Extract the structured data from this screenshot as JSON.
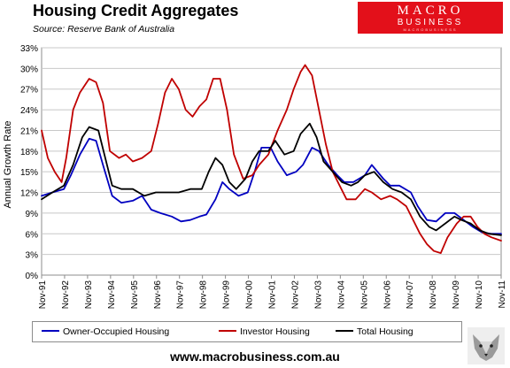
{
  "title": "Housing Credit Aggregates",
  "source": "Source: Reserve Bank of Australia",
  "logo": {
    "line1": "MACRO",
    "line2": "BUSINESS",
    "line3": "MACROBUSINESS"
  },
  "footer_url": "www.macrobusiness.com.au",
  "colors": {
    "owner": "#0000c0",
    "investor": "#c00000",
    "total": "#000000",
    "logo_bg": "#e3101a"
  },
  "chart_data": {
    "type": "line",
    "title": "Housing Credit Aggregates",
    "ylabel": "Annual Growth Rate",
    "xlabel": "",
    "ylim": [
      0,
      33
    ],
    "yticks": [
      0,
      3,
      6,
      9,
      12,
      15,
      18,
      21,
      24,
      27,
      30,
      33
    ],
    "ytick_labels": [
      "0%",
      "3%",
      "6%",
      "9%",
      "12%",
      "15%",
      "18%",
      "21%",
      "24%",
      "27%",
      "30%",
      "33%"
    ],
    "xlim": [
      1991.83,
      2011.83
    ],
    "xticks": [
      1991.83,
      1992.83,
      1993.83,
      1994.83,
      1995.83,
      1996.83,
      1997.83,
      1998.83,
      1999.83,
      2000.83,
      2001.83,
      2002.83,
      2003.83,
      2004.83,
      2005.83,
      2006.83,
      2007.83,
      2008.83,
      2009.83,
      2010.83,
      2011.83
    ],
    "xtick_labels": [
      "Nov-91",
      "Nov-92",
      "Nov-93",
      "Nov-94",
      "Nov-95",
      "Nov-96",
      "Nov-97",
      "Nov-98",
      "Nov-99",
      "Nov-00",
      "Nov-01",
      "Nov-02",
      "Nov-03",
      "Nov-04",
      "Nov-05",
      "Nov-06",
      "Nov-07",
      "Nov-08",
      "Nov-09",
      "Nov-10",
      "Nov-11"
    ],
    "grid": true,
    "legend_position": "bottom",
    "series": [
      {
        "name": "Owner-Occupied Housing",
        "x": [
          1991.83,
          1992.3,
          1992.8,
          1993.1,
          1993.5,
          1993.9,
          1994.2,
          1994.5,
          1994.9,
          1995.3,
          1995.8,
          1996.2,
          1996.6,
          1997.0,
          1997.5,
          1997.9,
          1998.3,
          1998.7,
          1999.0,
          1999.4,
          1999.7,
          2000.0,
          2000.4,
          2000.8,
          2001.1,
          2001.4,
          2001.8,
          2002.1,
          2002.5,
          2002.9,
          2003.2,
          2003.6,
          2003.9,
          2004.3,
          2004.7,
          2005.0,
          2005.4,
          2005.9,
          2006.2,
          2006.7,
          2007.0,
          2007.4,
          2007.9,
          2008.2,
          2008.6,
          2009.0,
          2009.4,
          2009.8,
          2010.2,
          2010.6,
          2011.0,
          2011.4,
          2011.83
        ],
        "values": [
          11.5,
          12.0,
          12.5,
          14.5,
          17.5,
          19.8,
          19.5,
          16.0,
          11.5,
          10.5,
          10.8,
          11.5,
          9.5,
          9.0,
          8.5,
          7.8,
          8.0,
          8.5,
          8.8,
          11.0,
          13.5,
          12.5,
          11.5,
          12.0,
          15.0,
          18.5,
          18.5,
          16.5,
          14.5,
          15.0,
          16.0,
          18.5,
          18.0,
          16.0,
          14.5,
          13.5,
          13.5,
          14.5,
          16.0,
          14.0,
          13.0,
          13.0,
          12.0,
          10.0,
          8.0,
          7.8,
          9.0,
          9.0,
          8.0,
          7.0,
          6.2,
          6.0,
          6.0
        ]
      },
      {
        "name": "Investor Housing",
        "x": [
          1991.83,
          1992.1,
          1992.4,
          1992.7,
          1992.9,
          1993.2,
          1993.5,
          1993.9,
          1994.2,
          1994.5,
          1994.8,
          1995.2,
          1995.5,
          1995.8,
          1996.2,
          1996.6,
          1996.9,
          1997.2,
          1997.5,
          1997.8,
          1998.1,
          1998.4,
          1998.7,
          1999.0,
          1999.3,
          1999.6,
          1999.9,
          2000.2,
          2000.6,
          2001.0,
          2001.3,
          2001.7,
          2002.1,
          2002.5,
          2002.8,
          2003.1,
          2003.3,
          2003.6,
          2003.9,
          2004.2,
          2004.5,
          2004.8,
          2005.1,
          2005.5,
          2005.9,
          2006.2,
          2006.6,
          2007.0,
          2007.3,
          2007.7,
          2008.0,
          2008.3,
          2008.6,
          2008.9,
          2009.2,
          2009.5,
          2009.9,
          2010.2,
          2010.5,
          2010.8,
          2011.1,
          2011.4,
          2011.83
        ],
        "values": [
          21.0,
          17.0,
          15.0,
          13.5,
          17.0,
          24.0,
          26.5,
          28.5,
          28.0,
          25.0,
          18.0,
          17.0,
          17.5,
          16.5,
          17.0,
          18.0,
          22.0,
          26.5,
          28.5,
          27.0,
          24.0,
          23.0,
          24.5,
          25.5,
          28.5,
          28.5,
          24.0,
          17.5,
          14.0,
          14.5,
          16.0,
          17.5,
          21.0,
          24.0,
          27.0,
          29.5,
          30.5,
          29.0,
          24.0,
          19.0,
          15.0,
          13.0,
          11.0,
          11.0,
          12.5,
          12.0,
          11.0,
          11.5,
          11.0,
          10.0,
          8.0,
          6.0,
          4.5,
          3.5,
          3.2,
          5.5,
          7.5,
          8.5,
          8.5,
          7.0,
          6.0,
          5.5,
          5.0
        ]
      },
      {
        "name": "Total Housing",
        "x": [
          1991.83,
          1992.3,
          1992.8,
          1993.2,
          1993.6,
          1993.9,
          1994.3,
          1994.6,
          1994.9,
          1995.3,
          1995.8,
          1996.3,
          1996.8,
          1997.3,
          1997.8,
          1998.3,
          1998.8,
          1999.1,
          1999.4,
          1999.7,
          2000.0,
          2000.3,
          2000.7,
          2001.0,
          2001.3,
          2001.7,
          2002.0,
          2002.4,
          2002.8,
          2003.1,
          2003.5,
          2003.8,
          2004.1,
          2004.5,
          2004.9,
          2005.3,
          2005.6,
          2005.9,
          2006.3,
          2006.7,
          2007.1,
          2007.5,
          2007.9,
          2008.3,
          2008.7,
          2009.0,
          2009.4,
          2009.8,
          2010.1,
          2010.5,
          2010.9,
          2011.3,
          2011.83
        ],
        "values": [
          11.0,
          12.0,
          13.0,
          16.0,
          20.0,
          21.5,
          21.0,
          17.0,
          13.0,
          12.5,
          12.5,
          11.5,
          12.0,
          12.0,
          12.0,
          12.5,
          12.5,
          15.0,
          17.0,
          16.0,
          13.5,
          12.5,
          14.0,
          16.5,
          18.0,
          18.0,
          19.5,
          17.5,
          18.0,
          20.5,
          22.0,
          20.0,
          16.5,
          15.0,
          13.5,
          13.0,
          13.5,
          14.5,
          15.0,
          13.5,
          12.5,
          12.0,
          11.0,
          8.5,
          7.0,
          6.5,
          7.5,
          8.5,
          8.0,
          7.5,
          6.5,
          6.0,
          5.8
        ]
      }
    ]
  }
}
